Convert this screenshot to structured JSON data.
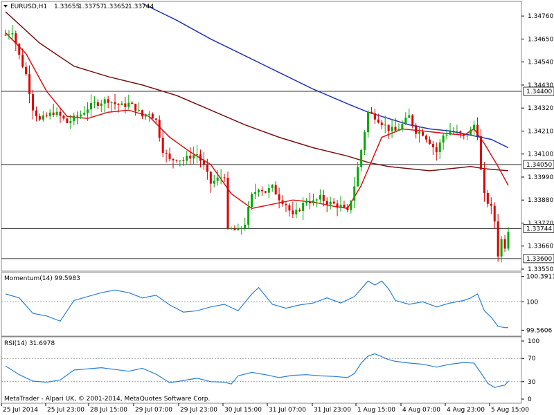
{
  "header": {
    "symbol": "EURUSD,H1",
    "open": "1.33655",
    "high": "1.33757",
    "low": "1.33652",
    "close": "1.33744"
  },
  "momentum_title": "Momentum(14) 99.5983",
  "rsi_title": "RSI(14) 31.6978",
  "copyright": "MetaTrader - Alpari UK, © 2001-2014, MetaQuotes Software Corp.",
  "colors": {
    "bull": "#00aa00",
    "bear": "#dd0000",
    "ma_fast": "#dd1111",
    "ma_mid": "#7a1010",
    "ma_slow": "#2233bb",
    "indicator": "#2a7fd4",
    "hline": "#333333",
    "grid": "#a0a0a0"
  },
  "chart_data": [
    {
      "type": "candlestick",
      "title": "EURUSD,H1",
      "ylim": [
        1.3355,
        1.3482
      ],
      "y_ticks": [
        "1.34760",
        "1.34650",
        "1.34540",
        "1.34430",
        "1.34320",
        "1.34210",
        "1.34100",
        "1.33990",
        "1.33880",
        "1.33770",
        "1.33660",
        "1.33550"
      ],
      "hlines": [
        {
          "value": "1.34400",
          "label": "1.34400"
        },
        {
          "value": "1.34050",
          "label": "1.34050"
        },
        {
          "value": "1.33744",
          "label": "1.33744"
        },
        {
          "value": "1.33600",
          "label": "1.33600"
        }
      ],
      "x_ticks": [
        "25 Jul 2014",
        "25 Jul 23:00",
        "28 Jul 15:00",
        "29 Jul 07:00",
        "29 Jul 23:00",
        "30 Jul 15:00",
        "31 Jul 07:00",
        "31 Jul 23:00",
        "1 Aug 15:00",
        "4 Aug 07:00",
        "4 Aug 23:00",
        "5 Aug 15:00"
      ],
      "close_path": [
        [
          0,
          1.3467
        ],
        [
          2,
          1.3469
        ],
        [
          4,
          1.3457
        ],
        [
          6,
          1.3448
        ],
        [
          8,
          1.3432
        ],
        [
          10,
          1.3426
        ],
        [
          12,
          1.3428
        ],
        [
          14,
          1.343
        ],
        [
          16,
          1.3428
        ],
        [
          18,
          1.3425
        ],
        [
          20,
          1.3427
        ],
        [
          22,
          1.3429
        ],
        [
          24,
          1.3432
        ],
        [
          26,
          1.3434
        ],
        [
          28,
          1.3435
        ],
        [
          30,
          1.3436
        ],
        [
          32,
          1.3434
        ],
        [
          34,
          1.3433
        ],
        [
          36,
          1.3434
        ],
        [
          38,
          1.3432
        ],
        [
          40,
          1.3428
        ],
        [
          42,
          1.343
        ],
        [
          44,
          1.3426
        ],
        [
          46,
          1.3412
        ],
        [
          48,
          1.3407
        ],
        [
          50,
          1.3408
        ],
        [
          52,
          1.3407
        ],
        [
          54,
          1.3409
        ],
        [
          56,
          1.341
        ],
        [
          58,
          1.3404
        ],
        [
          60,
          1.3396
        ],
        [
          62,
          1.3398
        ],
        [
          64,
          1.34
        ],
        [
          65,
          1.3373
        ],
        [
          66,
          1.3374
        ],
        [
          68,
          1.3373
        ],
        [
          70,
          1.3377
        ],
        [
          72,
          1.339
        ],
        [
          74,
          1.3394
        ],
        [
          76,
          1.3392
        ],
        [
          78,
          1.3394
        ],
        [
          80,
          1.3389
        ],
        [
          82,
          1.3386
        ],
        [
          84,
          1.338
        ],
        [
          86,
          1.3384
        ],
        [
          88,
          1.3388
        ],
        [
          90,
          1.3387
        ],
        [
          92,
          1.3389
        ],
        [
          94,
          1.3387
        ],
        [
          96,
          1.3386
        ],
        [
          98,
          1.3385
        ],
        [
          100,
          1.3382
        ],
        [
          102,
          1.3395
        ],
        [
          104,
          1.3412
        ],
        [
          106,
          1.343
        ],
        [
          108,
          1.3428
        ],
        [
          110,
          1.3425
        ],
        [
          112,
          1.3422
        ],
        [
          114,
          1.3421
        ],
        [
          116,
          1.3424
        ],
        [
          118,
          1.3428
        ],
        [
          120,
          1.3421
        ],
        [
          122,
          1.342
        ],
        [
          124,
          1.3416
        ],
        [
          126,
          1.3411
        ],
        [
          128,
          1.3419
        ],
        [
          130,
          1.3421
        ],
        [
          132,
          1.342
        ],
        [
          134,
          1.3418
        ],
        [
          136,
          1.3421
        ],
        [
          137,
          1.3424
        ],
        [
          138,
          1.342
        ],
        [
          139,
          1.3402
        ],
        [
          140,
          1.339
        ],
        [
          142,
          1.3384
        ],
        [
          143,
          1.3378
        ],
        [
          144,
          1.3362
        ],
        [
          145,
          1.3369
        ],
        [
          146,
          1.3366
        ],
        [
          147,
          1.3374
        ]
      ],
      "ma_fast_path": [
        [
          0,
          1.3468
        ],
        [
          6,
          1.3458
        ],
        [
          12,
          1.344
        ],
        [
          18,
          1.3428
        ],
        [
          24,
          1.3427
        ],
        [
          30,
          1.343
        ],
        [
          36,
          1.3431
        ],
        [
          42,
          1.3428
        ],
        [
          48,
          1.3418
        ],
        [
          54,
          1.3411
        ],
        [
          60,
          1.3405
        ],
        [
          66,
          1.3391
        ],
        [
          72,
          1.3384
        ],
        [
          78,
          1.3386
        ],
        [
          84,
          1.3388
        ],
        [
          90,
          1.3387
        ],
        [
          96,
          1.3385
        ],
        [
          100,
          1.3384
        ],
        [
          104,
          1.3395
        ],
        [
          110,
          1.3418
        ],
        [
          116,
          1.3422
        ],
        [
          122,
          1.3421
        ],
        [
          128,
          1.342
        ],
        [
          134,
          1.3419
        ],
        [
          137,
          1.3422
        ],
        [
          140,
          1.3415
        ],
        [
          144,
          1.3404
        ],
        [
          147,
          1.3395
        ]
      ],
      "ma_mid_path": [
        [
          0,
          1.3478
        ],
        [
          10,
          1.3463
        ],
        [
          20,
          1.3452
        ],
        [
          30,
          1.3447
        ],
        [
          40,
          1.3443
        ],
        [
          50,
          1.3438
        ],
        [
          60,
          1.3431
        ],
        [
          70,
          1.3424
        ],
        [
          80,
          1.3418
        ],
        [
          90,
          1.3413
        ],
        [
          100,
          1.3409
        ],
        [
          106,
          1.3406
        ],
        [
          112,
          1.3404
        ],
        [
          118,
          1.3403
        ],
        [
          124,
          1.3402
        ],
        [
          130,
          1.3403
        ],
        [
          136,
          1.3404
        ],
        [
          140,
          1.3403
        ],
        [
          147,
          1.3402
        ]
      ],
      "ma_slow_path": [
        [
          40,
          1.3482
        ],
        [
          50,
          1.3474
        ],
        [
          60,
          1.3465
        ],
        [
          70,
          1.3457
        ],
        [
          80,
          1.3449
        ],
        [
          90,
          1.3441
        ],
        [
          100,
          1.3434
        ],
        [
          106,
          1.343
        ],
        [
          112,
          1.3427
        ],
        [
          118,
          1.3424
        ],
        [
          124,
          1.3422
        ],
        [
          130,
          1.3421
        ],
        [
          136,
          1.3419
        ],
        [
          142,
          1.3417
        ],
        [
          147,
          1.3413
        ]
      ]
    },
    {
      "type": "line",
      "title": "Momentum(14) 99.5983",
      "ylim": [
        99.5,
        100.42
      ],
      "y_ticks": [
        "100.3911",
        "100",
        "99.5606"
      ],
      "reference_level": 100,
      "values": [
        [
          0,
          100.12
        ],
        [
          4,
          100.06
        ],
        [
          8,
          99.82
        ],
        [
          12,
          99.78
        ],
        [
          16,
          99.7
        ],
        [
          20,
          100.02
        ],
        [
          24,
          100.08
        ],
        [
          28,
          100.14
        ],
        [
          32,
          100.18
        ],
        [
          36,
          100.14
        ],
        [
          40,
          100.06
        ],
        [
          44,
          100.1
        ],
        [
          48,
          99.95
        ],
        [
          52,
          99.84
        ],
        [
          56,
          99.86
        ],
        [
          60,
          99.92
        ],
        [
          64,
          99.96
        ],
        [
          68,
          99.86
        ],
        [
          72,
          100.12
        ],
        [
          74,
          100.22
        ],
        [
          78,
          99.96
        ],
        [
          82,
          99.9
        ],
        [
          86,
          99.95
        ],
        [
          90,
          99.98
        ],
        [
          94,
          100.06
        ],
        [
          98,
          99.98
        ],
        [
          102,
          100.08
        ],
        [
          106,
          100.32
        ],
        [
          108,
          100.26
        ],
        [
          110,
          100.32
        ],
        [
          112,
          100.2
        ],
        [
          114,
          100.02
        ],
        [
          118,
          99.96
        ],
        [
          122,
          100.0
        ],
        [
          126,
          99.92
        ],
        [
          130,
          99.98
        ],
        [
          134,
          100.02
        ],
        [
          136,
          100.06
        ],
        [
          138,
          100.12
        ],
        [
          140,
          99.86
        ],
        [
          142,
          99.76
        ],
        [
          144,
          99.62
        ],
        [
          146,
          99.6
        ],
        [
          147,
          99.6
        ]
      ]
    },
    {
      "type": "line",
      "title": "RSI(14) 31.6978",
      "ylim": [
        0,
        100
      ],
      "y_ticks": [
        "100",
        "70",
        "30",
        "0"
      ],
      "levels": [
        70,
        30
      ],
      "values": [
        [
          0,
          57
        ],
        [
          4,
          42
        ],
        [
          8,
          31
        ],
        [
          12,
          29
        ],
        [
          16,
          33
        ],
        [
          20,
          50
        ],
        [
          24,
          52
        ],
        [
          28,
          54
        ],
        [
          32,
          51
        ],
        [
          36,
          48
        ],
        [
          40,
          53
        ],
        [
          44,
          43
        ],
        [
          48,
          28
        ],
        [
          52,
          32
        ],
        [
          56,
          36
        ],
        [
          60,
          30
        ],
        [
          64,
          29
        ],
        [
          66,
          26
        ],
        [
          68,
          40
        ],
        [
          72,
          46
        ],
        [
          76,
          42
        ],
        [
          80,
          37
        ],
        [
          84,
          41
        ],
        [
          88,
          42
        ],
        [
          92,
          40
        ],
        [
          96,
          39
        ],
        [
          100,
          37
        ],
        [
          102,
          44
        ],
        [
          104,
          62
        ],
        [
          106,
          74
        ],
        [
          108,
          78
        ],
        [
          110,
          73
        ],
        [
          112,
          68
        ],
        [
          114,
          65
        ],
        [
          118,
          62
        ],
        [
          122,
          60
        ],
        [
          126,
          55
        ],
        [
          130,
          60
        ],
        [
          134,
          63
        ],
        [
          137,
          62
        ],
        [
          139,
          45
        ],
        [
          141,
          27
        ],
        [
          143,
          20
        ],
        [
          145,
          23
        ],
        [
          146,
          24
        ],
        [
          147,
          31
        ]
      ]
    }
  ]
}
